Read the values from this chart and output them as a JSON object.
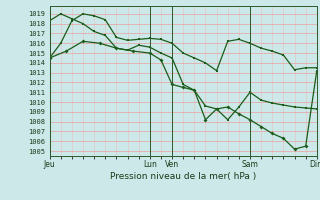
{
  "title": "Pression niveau de la mer( hPa )",
  "bg_color": "#cce8e8",
  "grid_color_major": "#e8a0a0",
  "grid_color_minor": "#e8c0c0",
  "line_color": "#1a5c1a",
  "ylim": [
    1004.5,
    1019.8
  ],
  "yticks": [
    1005,
    1006,
    1007,
    1008,
    1009,
    1010,
    1011,
    1012,
    1013,
    1014,
    1015,
    1016,
    1017,
    1018,
    1019
  ],
  "xtick_labels": [
    "Jeu",
    "Lun",
    "Ven",
    "Sam",
    "Dim"
  ],
  "xtick_positions": [
    0,
    9,
    11,
    18,
    24
  ],
  "line1_x": [
    0,
    1,
    2,
    3,
    4,
    5,
    6,
    7,
    8,
    9,
    10,
    11,
    12,
    13,
    14,
    15,
    16,
    17,
    18,
    19,
    20,
    21,
    22,
    23,
    24
  ],
  "line1_y": [
    1014.5,
    1016.0,
    1018.3,
    1019.0,
    1018.8,
    1018.4,
    1016.6,
    1016.3,
    1016.4,
    1016.5,
    1016.4,
    1016.0,
    1015.0,
    1014.5,
    1014.0,
    1013.2,
    1016.2,
    1016.4,
    1016.0,
    1015.5,
    1015.2,
    1014.8,
    1013.3,
    1013.5,
    1013.5
  ],
  "line2_x": [
    0,
    1,
    2,
    3,
    4,
    5,
    6,
    7,
    8,
    9,
    10,
    11,
    12,
    13,
    14,
    15,
    16,
    17,
    18,
    19,
    20,
    21,
    22,
    23,
    24
  ],
  "line2_y": [
    1018.3,
    1019.0,
    1018.5,
    1018.0,
    1017.2,
    1016.8,
    1015.5,
    1015.3,
    1015.8,
    1015.6,
    1015.0,
    1014.5,
    1011.8,
    1011.2,
    1009.6,
    1009.3,
    1008.2,
    1009.5,
    1011.0,
    1010.2,
    1009.9,
    1009.7,
    1009.5,
    1009.4,
    1009.3
  ],
  "line3_x": [
    0,
    1.5,
    3,
    4.5,
    6,
    7.5,
    9,
    10,
    11,
    12,
    13,
    14,
    15,
    16,
    17,
    18,
    19,
    20,
    21,
    22,
    23,
    24
  ],
  "line3_y": [
    1014.5,
    1015.2,
    1016.2,
    1016.0,
    1015.5,
    1015.2,
    1015.0,
    1014.3,
    1011.8,
    1011.5,
    1011.2,
    1008.2,
    1009.3,
    1009.5,
    1008.8,
    1008.2,
    1007.5,
    1006.8,
    1006.3,
    1005.2,
    1005.5,
    1013.2
  ],
  "vlines_x": [
    0,
    9,
    11,
    18,
    24
  ]
}
